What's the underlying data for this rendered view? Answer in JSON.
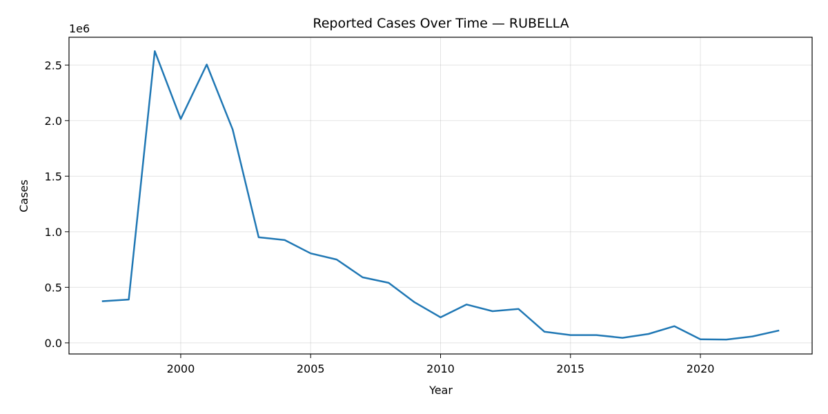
{
  "chart_data": {
    "type": "line",
    "title": "Reported Cases Over Time — RUBELLA",
    "xlabel": "Year",
    "ylabel": "Cases",
    "y_offset_label": "1e6",
    "xlim": [
      1995.7,
      2024.3
    ],
    "ylim": [
      -0.1,
      2.75
    ],
    "xticks": [
      2000,
      2005,
      2010,
      2015,
      2020
    ],
    "yticks": [
      0.0,
      0.5,
      1.0,
      1.5,
      2.0,
      2.5
    ],
    "ytick_labels": [
      "0.0",
      "0.5",
      "1.0",
      "1.5",
      "2.0",
      "2.5"
    ],
    "grid": true,
    "line_color": "#1f77b4",
    "x": [
      1997,
      1998,
      1999,
      2000,
      2001,
      2002,
      2003,
      2004,
      2005,
      2006,
      2007,
      2008,
      2009,
      2010,
      2011,
      2012,
      2013,
      2014,
      2015,
      2016,
      2017,
      2018,
      2019,
      2020,
      2021,
      2022,
      2023
    ],
    "y": [
      0.375,
      0.39,
      2.625,
      2.015,
      2.505,
      1.92,
      0.95,
      0.925,
      0.805,
      0.75,
      0.59,
      0.54,
      0.365,
      0.23,
      0.345,
      0.285,
      0.305,
      0.1,
      0.07,
      0.07,
      0.045,
      0.08,
      0.15,
      0.032,
      0.03,
      0.058,
      0.11
    ]
  }
}
